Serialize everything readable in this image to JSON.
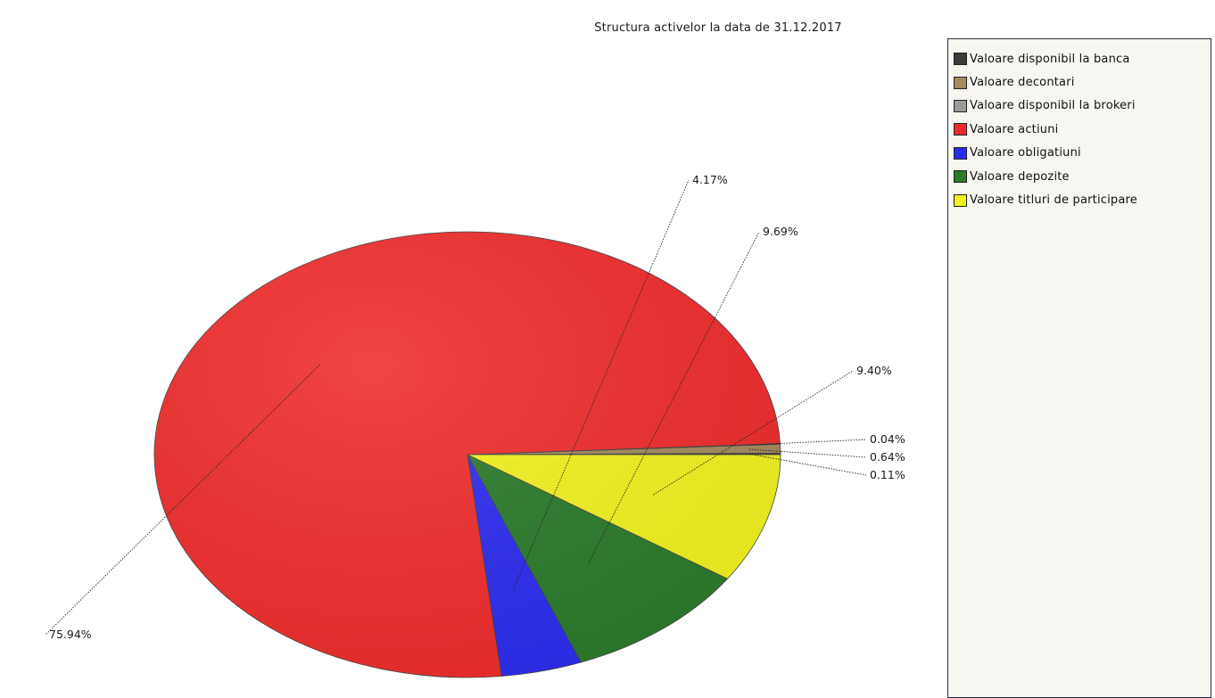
{
  "chart_data": {
    "type": "pie",
    "title": "Structura activelor la data de 31.12.2017",
    "slices": [
      {
        "label": "Valoare disponibil la banca",
        "value": 0.11,
        "value_label": "0.11%",
        "color": "#3a3a3a"
      },
      {
        "label": "Valoare decontari",
        "value": 0.64,
        "value_label": "0.64%",
        "color": "#a58a5c"
      },
      {
        "label": "Valoare disponibil la brokeri",
        "value": 0.04,
        "value_label": "0.04%",
        "color": "#9a9a9a"
      },
      {
        "label": "Valoare actiuni",
        "value": 75.94,
        "value_label": "75.94%",
        "color": "#ef2b2b"
      },
      {
        "label": "Valoare obligatiuni",
        "value": 4.17,
        "value_label": "4.17%",
        "color": "#2b2bef"
      },
      {
        "label": "Valoare depozite",
        "value": 9.69,
        "value_label": "9.69%",
        "color": "#2a7a2a"
      },
      {
        "label": "Valoare titluri de participare",
        "value": 9.4,
        "value_label": "9.40%",
        "color": "#f2f21e"
      }
    ],
    "legend_position": "right"
  },
  "legend": {
    "items": [
      {
        "label": "Valoare disponibil la banca",
        "color": "#3a3a3a"
      },
      {
        "label": "Valoare decontari",
        "color": "#a58a5c"
      },
      {
        "label": "Valoare disponibil la brokeri",
        "color": "#9a9a9a"
      },
      {
        "label": "Valoare actiuni",
        "color": "#ef2b2b"
      },
      {
        "label": "Valoare obligatiuni",
        "color": "#2b2bef"
      },
      {
        "label": "Valoare depozite",
        "color": "#2a7a2a"
      },
      {
        "label": "Valoare titluri de participare",
        "color": "#f2f21e"
      }
    ]
  }
}
